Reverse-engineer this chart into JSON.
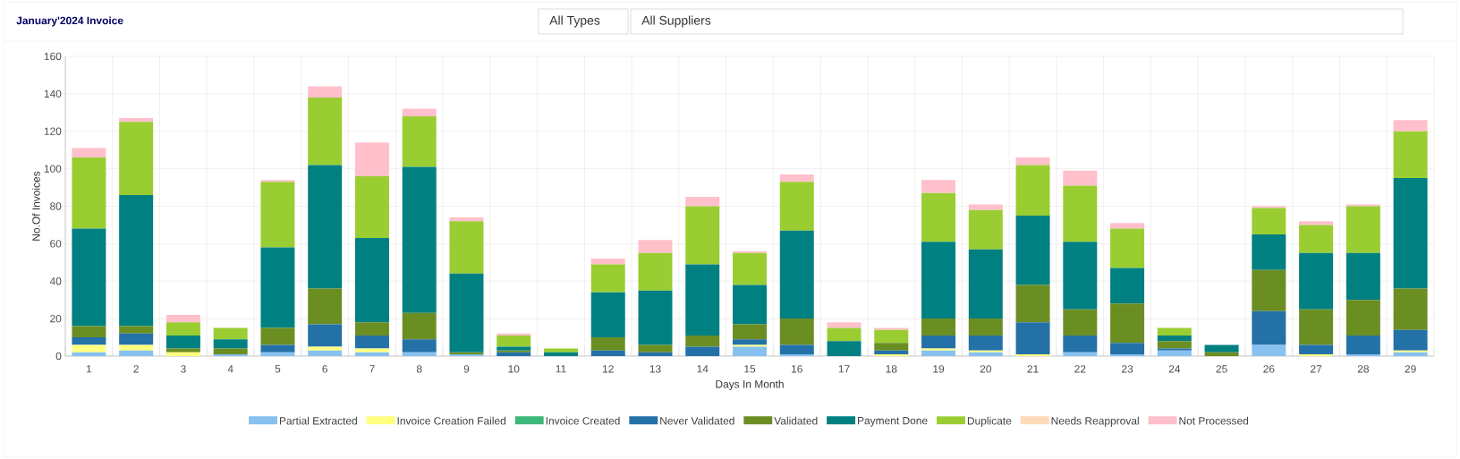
{
  "chart_data": {
    "type": "bar",
    "stacked": true,
    "title": "January'2024 Invoice",
    "annotations": [
      "All Types",
      "All Suppliers"
    ],
    "xlabel": "Days In Month",
    "ylabel": "No.Of Invoices",
    "categories": [
      "1",
      "2",
      "3",
      "4",
      "5",
      "6",
      "7",
      "8",
      "9",
      "10",
      "11",
      "12",
      "13",
      "14",
      "15",
      "16",
      "17",
      "18",
      "19",
      "20",
      "21",
      "22",
      "23",
      "24",
      "25",
      "26",
      "27",
      "28",
      "29"
    ],
    "ylim": [
      0,
      160
    ],
    "yticks": [
      0,
      20,
      40,
      60,
      80,
      100,
      120,
      140,
      160
    ],
    "grid": true,
    "legend": "bottom",
    "series": [
      {
        "name": "Partial Extracted",
        "color": "#87c1f0",
        "values": [
          2,
          3,
          0,
          1,
          2,
          3,
          2,
          2,
          1,
          0,
          0,
          0,
          0,
          0,
          5,
          1,
          0,
          0,
          3,
          2,
          0,
          2,
          1,
          3,
          0,
          6,
          0,
          1,
          2
        ]
      },
      {
        "name": "Invoice Creation Failed",
        "color": "#ffff80",
        "values": [
          4,
          3,
          2,
          0,
          0,
          2,
          2,
          0,
          0,
          0,
          0,
          0,
          0,
          0,
          1,
          0,
          0,
          1,
          1,
          1,
          1,
          0,
          0,
          0,
          0,
          0,
          1,
          0,
          1
        ]
      },
      {
        "name": "Invoice Created",
        "color": "#3cb878",
        "values": [
          0,
          0,
          0,
          0,
          0,
          0,
          0,
          0,
          0,
          0,
          0,
          0,
          0,
          0,
          0,
          0,
          0,
          0,
          0,
          0,
          0,
          0,
          0,
          0,
          0,
          0,
          0,
          0,
          0
        ]
      },
      {
        "name": "Never Validated",
        "color": "#2471a8",
        "values": [
          4,
          6,
          0,
          0,
          4,
          12,
          7,
          7,
          0,
          2,
          0,
          3,
          2,
          5,
          3,
          5,
          0,
          2,
          7,
          8,
          17,
          9,
          6,
          1,
          0,
          18,
          5,
          10,
          11
        ]
      },
      {
        "name": "Validated",
        "color": "#6b8e23",
        "values": [
          6,
          4,
          2,
          3,
          9,
          19,
          7,
          14,
          1,
          1,
          0,
          7,
          4,
          6,
          8,
          14,
          0,
          4,
          9,
          9,
          20,
          14,
          21,
          4,
          2,
          22,
          19,
          19,
          22
        ]
      },
      {
        "name": "Payment Done",
        "color": "#008080",
        "values": [
          52,
          70,
          7,
          5,
          43,
          66,
          45,
          78,
          42,
          2,
          2,
          24,
          29,
          38,
          21,
          47,
          8,
          0,
          41,
          37,
          37,
          36,
          19,
          3,
          4,
          19,
          30,
          25,
          59
        ]
      },
      {
        "name": "Duplicate",
        "color": "#9acd32",
        "values": [
          38,
          39,
          7,
          6,
          35,
          36,
          33,
          27,
          28,
          6,
          2,
          15,
          20,
          31,
          17,
          26,
          7,
          7,
          26,
          21,
          27,
          30,
          21,
          4,
          0,
          14,
          15,
          25,
          25
        ]
      },
      {
        "name": "Needs Reapproval",
        "color": "#ffdab9",
        "values": [
          0,
          0,
          0,
          0,
          0,
          0,
          0,
          0,
          0,
          0,
          0,
          0,
          0,
          0,
          0,
          0,
          0,
          0,
          0,
          0,
          0,
          0,
          0,
          0,
          0,
          0,
          0,
          0,
          0
        ]
      },
      {
        "name": "Not Processed",
        "color": "#ffc0cb",
        "values": [
          5,
          2,
          4,
          0,
          1,
          6,
          18,
          4,
          2,
          1,
          0,
          3,
          7,
          5,
          1,
          4,
          3,
          1,
          7,
          3,
          4,
          8,
          3,
          0,
          0,
          1,
          2,
          1,
          6
        ]
      }
    ]
  }
}
